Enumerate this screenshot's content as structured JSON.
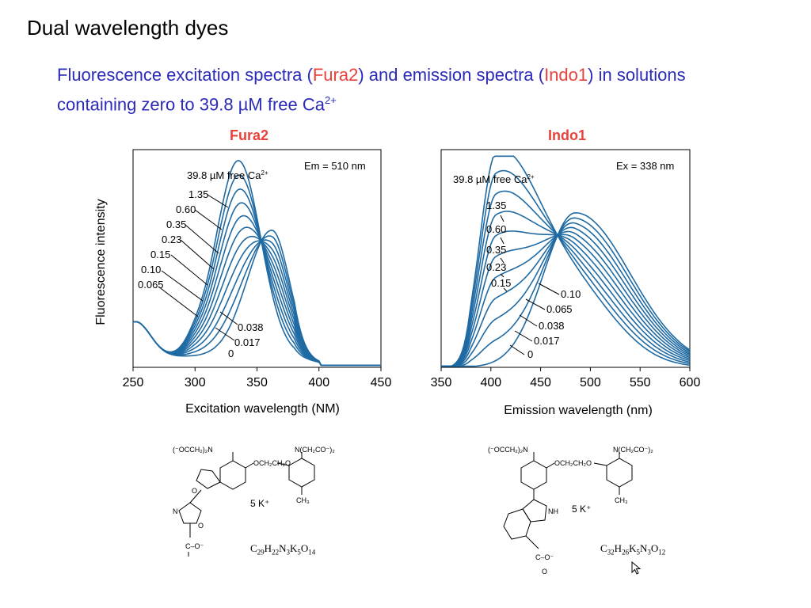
{
  "slide_title": "Dual wavelength dyes",
  "subtitle": {
    "part1": "Fluorescence excitation spectra (",
    "dye1": "Fura2",
    "part2": ") and emission spectra (",
    "dye2": "Indo1",
    "part3": ") in solutions containing zero to 39.8 µM free Ca",
    "sup": "2+"
  },
  "colors": {
    "title_blue": "#2b2bb8",
    "dye_red": "#e8423c",
    "curve": "#1f6aa3"
  },
  "chart_data": [
    {
      "type": "line",
      "title": "Fura2",
      "ylabel": "Fluorescence intensity",
      "xlabel": "Excitation wavelength (NM)",
      "xlim": [
        250,
        450
      ],
      "xticks": [
        "250",
        "300",
        "350",
        "400",
        "450"
      ],
      "annotation": "Em = 510 nm",
      "conc_header": "39.8 µM free Ca",
      "conc_header_sup": "2+",
      "isosbestic_x": 360,
      "series": [
        {
          "name": "0",
          "peak_x": 362,
          "peak_y": 0.58
        },
        {
          "name": "0.017",
          "peak_x": 361,
          "peak_y": 0.58
        },
        {
          "name": "0.038",
          "peak_x": 358,
          "peak_y": 0.58
        },
        {
          "name": "0.065",
          "peak_x": 353,
          "peak_y": 0.6
        },
        {
          "name": "0.10",
          "peak_x": 348,
          "peak_y": 0.64
        },
        {
          "name": "0.15",
          "peak_x": 344,
          "peak_y": 0.68
        },
        {
          "name": "0.23",
          "peak_x": 341,
          "peak_y": 0.74
        },
        {
          "name": "0.35",
          "peak_x": 339,
          "peak_y": 0.8
        },
        {
          "name": "0.60",
          "peak_x": 337,
          "peak_y": 0.87
        },
        {
          "name": "1.35",
          "peak_x": 336,
          "peak_y": 0.91
        },
        {
          "name": "39.8",
          "peak_x": 335,
          "peak_y": 0.94
        }
      ],
      "upper_labels": [
        "1.35",
        "0.60",
        "0.35",
        "0.23",
        "0.15",
        "0.10",
        "0.065"
      ],
      "lower_labels": [
        "0.038",
        "0.017",
        "0"
      ]
    },
    {
      "type": "line",
      "title": "Indo1",
      "xlabel": "Emission wavelength (nm)",
      "xlim": [
        350,
        600
      ],
      "xticks": [
        "350",
        "400",
        "450",
        "500",
        "550",
        "600"
      ],
      "annotation": "Ex = 338 nm",
      "conc_header": "39.8 µM free Ca",
      "conc_header_sup": "2+",
      "isosbestic_x": 465,
      "series": [
        {
          "name": "0",
          "peak_x": 485,
          "peak_y": 0.71
        },
        {
          "name": "0.017",
          "peak_x": 484,
          "peak_y": 0.7
        },
        {
          "name": "0.038",
          "peak_x": 483,
          "peak_y": 0.69
        },
        {
          "name": "0.065",
          "peak_x": 482,
          "peak_y": 0.68
        },
        {
          "name": "0.10",
          "peak_x": 481,
          "peak_y": 0.67
        },
        {
          "name": "0.15",
          "peak_x": 480,
          "peak_y": 0.66
        },
        {
          "name": "0.23",
          "peak_x": 478,
          "peak_y": 0.65
        },
        {
          "name": "0.35",
          "peak_x": 475,
          "peak_y": 0.64
        },
        {
          "name": "0.60",
          "peak_x": 472,
          "peak_y": 0.66
        },
        {
          "name": "1.35",
          "peak_x": 410,
          "peak_y": 0.82
        },
        {
          "name": "39.8",
          "peak_x": 405,
          "peak_y": 0.9
        }
      ],
      "upper_labels": [
        "1.35",
        "0.60",
        "0.35",
        "0.23",
        "0.15"
      ],
      "lower_labels": [
        "0.10",
        "0.065",
        "0.038",
        "0.017",
        "0"
      ]
    }
  ],
  "structures": {
    "fura2": {
      "groups": [
        "(⁻OCCH₂)₂N",
        "OCH₂CH₂O",
        "N(CH₂CO⁻)₂",
        "CH₃",
        "C–O⁻",
        "O",
        "N",
        "O"
      ],
      "counterion": "5 K⁺",
      "formula": "C29H22N3K5O14"
    },
    "indo1": {
      "groups": [
        "(⁻OCCH₂)₂N",
        "OCH₂CH₂O",
        "N(CH₂CO⁻)₂",
        "CH₃",
        "NH",
        "C–O⁻",
        "O"
      ],
      "counterion": "5 K⁺",
      "formula": "C32H26K5N3O12"
    }
  }
}
